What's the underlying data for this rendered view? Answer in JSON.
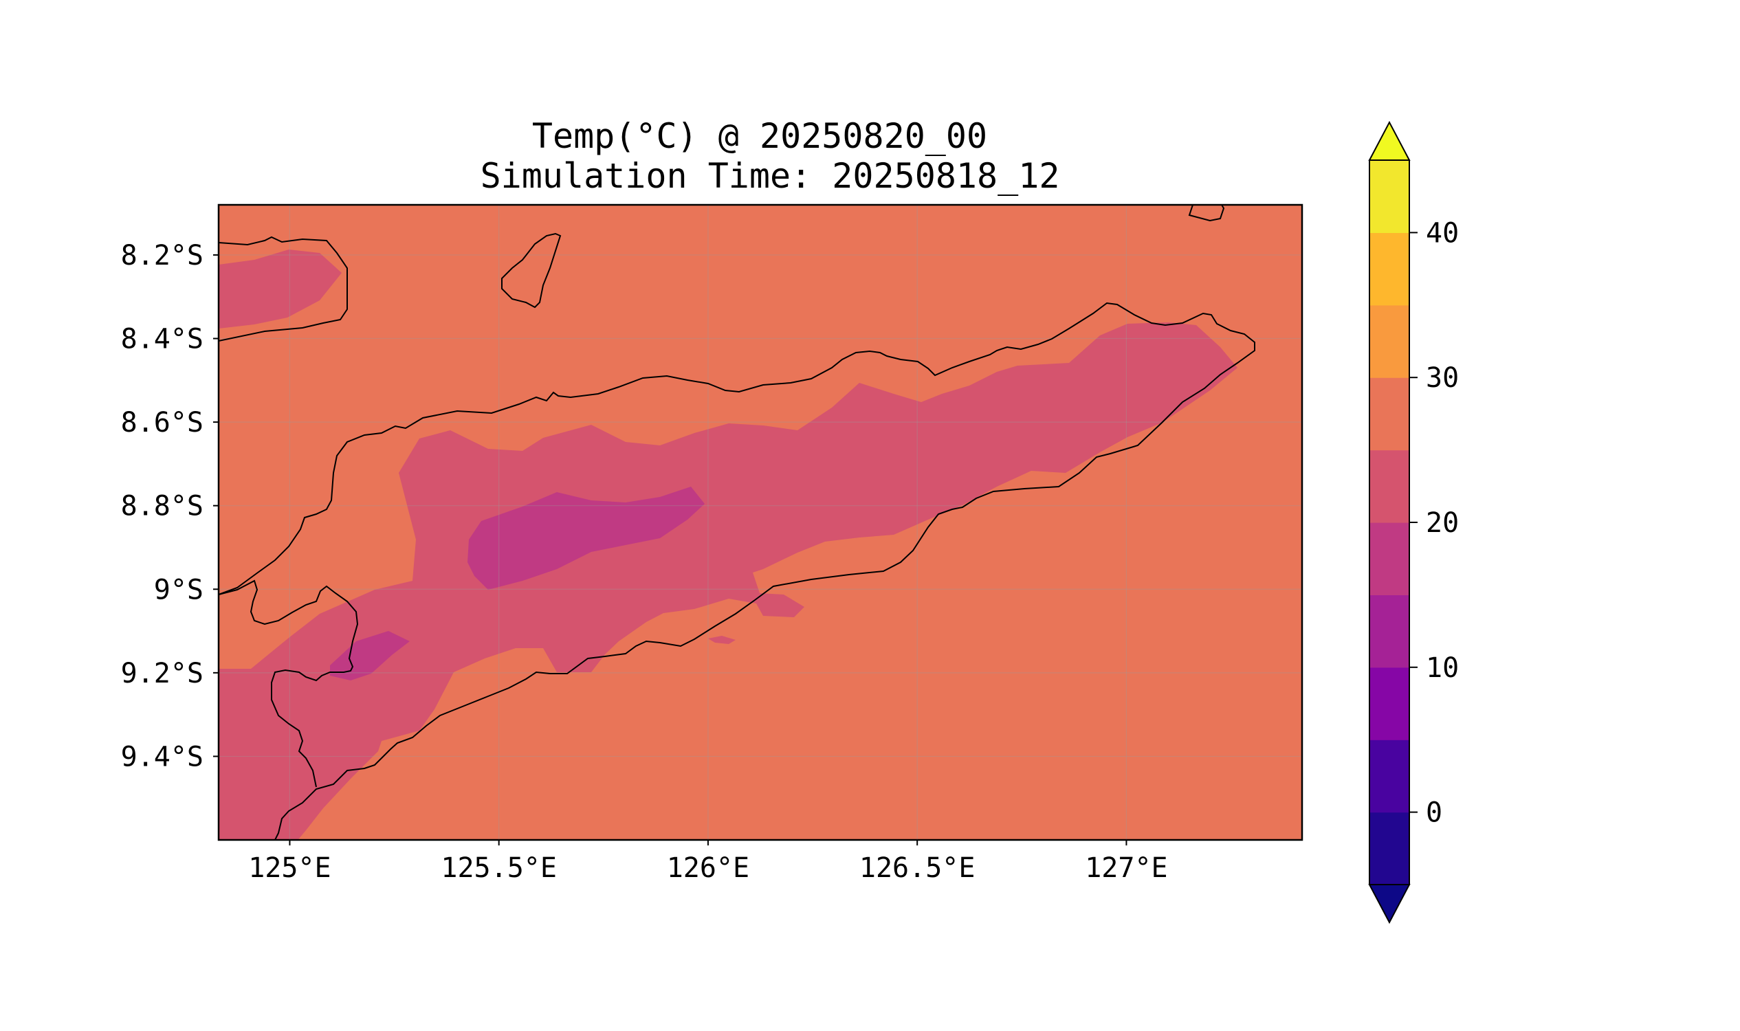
{
  "title": {
    "line1": "Temp(°C) @ 20250820_00",
    "line2": "Simulation Time: 20250818_12"
  },
  "map": {
    "lon_range": [
      124.83,
      127.42
    ],
    "lat_range": [
      -9.6,
      -8.08
    ],
    "x_ticks": [
      {
        "lon": 125.0,
        "label": "125°E"
      },
      {
        "lon": 125.5,
        "label": "125.5°E"
      },
      {
        "lon": 126.0,
        "label": "126°E"
      },
      {
        "lon": 126.5,
        "label": "126.5°E"
      },
      {
        "lon": 127.0,
        "label": "127°E"
      }
    ],
    "y_ticks": [
      {
        "lat": -8.2,
        "label": "8.2°S"
      },
      {
        "lat": -8.4,
        "label": "8.4°S"
      },
      {
        "lat": -8.6,
        "label": "8.6°S"
      },
      {
        "lat": -8.8,
        "label": "8.8°S"
      },
      {
        "lat": -9.0,
        "label": "9°S"
      },
      {
        "lat": -9.2,
        "label": "9.2°S"
      },
      {
        "lat": -9.4,
        "label": "9.4°S"
      }
    ],
    "background_color": "#e97558",
    "gridlines": true
  },
  "colorbar": {
    "levels": [
      -5,
      0,
      5,
      10,
      15,
      20,
      25,
      30,
      35,
      40,
      45
    ],
    "colors": [
      "#220690",
      "#4903a0",
      "#8606a6",
      "#a52296",
      "#c03a83",
      "#d5546e",
      "#e97558",
      "#f99a3e",
      "#feb72d",
      "#f2e72d"
    ],
    "under_color": "#0d0887",
    "over_color": "#f0f921",
    "tick_values": [
      0,
      10,
      20,
      30,
      40
    ],
    "tick_labels": [
      "0",
      "10",
      "20",
      "30",
      "40"
    ],
    "extend": "both"
  }
}
